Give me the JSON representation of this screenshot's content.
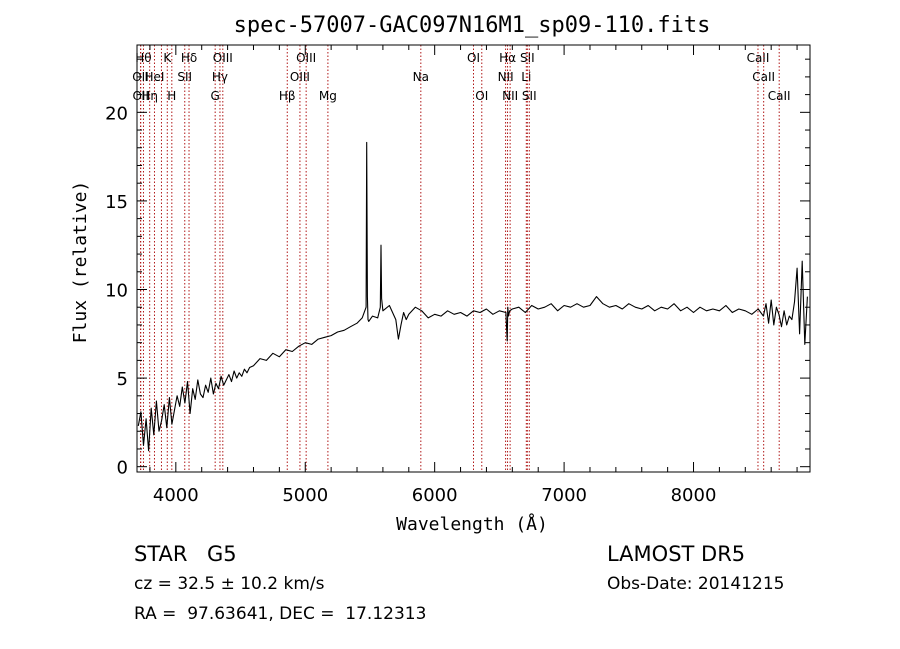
{
  "chart_data": {
    "type": "line",
    "title": "spec-57007-GAC097N16M1_sp09-110.fits",
    "xlabel": "Wavelength (Å)",
    "ylabel": "Flux (relative)",
    "xlim": [
      3700,
      8900
    ],
    "ylim": [
      -0.3,
      23.8
    ],
    "xticks": [
      4000,
      5000,
      6000,
      7000,
      8000
    ],
    "yticks": [
      0,
      5,
      10,
      15,
      20
    ],
    "grid": false,
    "series": [
      {
        "x": [
          3710,
          3730,
          3750,
          3770,
          3790,
          3810,
          3830,
          3850,
          3870,
          3890,
          3910,
          3930,
          3950,
          3970,
          3990,
          4010,
          4030,
          4050,
          4070,
          4090,
          4110,
          4130,
          4150,
          4170,
          4190,
          4210,
          4230,
          4250,
          4270,
          4290,
          4310,
          4330,
          4350,
          4370,
          4390,
          4410,
          4430,
          4450,
          4470,
          4490,
          4510,
          4530,
          4550,
          4570,
          4600,
          4650,
          4700,
          4750,
          4800,
          4850,
          4900,
          4950,
          5000,
          5050,
          5100,
          5150,
          5200,
          5250,
          5300,
          5350,
          5400,
          5440,
          5470,
          5475,
          5480,
          5485,
          5490,
          5520,
          5560,
          5580,
          5585,
          5590,
          5600,
          5650,
          5700,
          5720,
          5740,
          5760,
          5780,
          5800,
          5850,
          5900,
          5950,
          6000,
          6050,
          6100,
          6150,
          6200,
          6250,
          6300,
          6350,
          6400,
          6450,
          6500,
          6550,
          6560,
          6565,
          6570,
          6580,
          6600,
          6650,
          6700,
          6750,
          6800,
          6850,
          6900,
          6950,
          7000,
          7050,
          7100,
          7150,
          7200,
          7250,
          7300,
          7350,
          7400,
          7450,
          7500,
          7550,
          7600,
          7650,
          7700,
          7750,
          7800,
          7850,
          7900,
          7950,
          8000,
          8050,
          8100,
          8150,
          8200,
          8250,
          8300,
          8350,
          8400,
          8450,
          8500,
          8540,
          8560,
          8580,
          8600,
          8620,
          8640,
          8660,
          8680,
          8700,
          8720,
          8740,
          8760,
          8780,
          8800,
          8820,
          8840,
          8860,
          8880
        ],
        "y": [
          2.3,
          3.1,
          1.2,
          2.7,
          0.9,
          3.3,
          1.8,
          3.7,
          2.0,
          2.6,
          3.5,
          2.2,
          3.9,
          2.4,
          3.2,
          4.0,
          3.4,
          4.5,
          3.6,
          4.8,
          3.0,
          4.4,
          3.8,
          4.9,
          4.1,
          3.9,
          4.6,
          4.2,
          5.0,
          4.1,
          4.7,
          4.4,
          5.1,
          4.6,
          4.9,
          5.2,
          4.8,
          5.4,
          5.0,
          5.3,
          5.1,
          5.5,
          5.3,
          5.6,
          5.7,
          6.1,
          6.0,
          6.4,
          6.2,
          6.6,
          6.5,
          6.8,
          7.0,
          6.9,
          7.2,
          7.3,
          7.4,
          7.6,
          7.7,
          7.9,
          8.1,
          8.4,
          9.0,
          18.3,
          9.6,
          8.3,
          8.2,
          8.5,
          8.4,
          9.0,
          12.5,
          9.5,
          8.8,
          9.1,
          8.3,
          7.2,
          8.0,
          8.7,
          8.3,
          8.6,
          9.0,
          8.8,
          8.4,
          8.6,
          8.5,
          8.8,
          8.6,
          8.7,
          8.5,
          8.8,
          8.7,
          8.9,
          8.6,
          8.8,
          8.7,
          7.1,
          9.0,
          8.5,
          8.8,
          8.9,
          9.0,
          8.7,
          9.1,
          8.9,
          9.0,
          9.2,
          8.8,
          9.1,
          9.0,
          9.2,
          9.0,
          9.1,
          9.6,
          9.2,
          9.0,
          9.1,
          8.9,
          9.2,
          9.0,
          8.9,
          9.1,
          8.8,
          9.0,
          8.9,
          9.2,
          8.8,
          9.0,
          8.7,
          9.0,
          8.8,
          8.9,
          8.8,
          9.1,
          8.7,
          8.9,
          8.8,
          8.6,
          8.9,
          8.5,
          9.2,
          8.1,
          9.4,
          8.0,
          9.0,
          8.6,
          7.9,
          8.8,
          8.0,
          8.5,
          8.3,
          9.3,
          11.2,
          7.5,
          11.6,
          6.9,
          9.6
        ]
      }
    ],
    "lines_color": "#b01818",
    "line_markers": [
      {
        "x": 3750,
        "label": "Hθ",
        "row": 0
      },
      {
        "x": 3727,
        "label": "OII",
        "row": 1
      },
      {
        "x": 3729,
        "label": "OII",
        "row": 2
      },
      {
        "x": 3798,
        "label": "Hη",
        "row": 2
      },
      {
        "x": 3835,
        "label": "HeI",
        "row": 1
      },
      {
        "x": 3889,
        "label": "",
        "row": -1
      },
      {
        "x": 3934,
        "label": "K",
        "row": 0
      },
      {
        "x": 3969,
        "label": "H",
        "row": 2
      },
      {
        "x": 4069,
        "label": "SII",
        "row": 1
      },
      {
        "x": 4102,
        "label": "Hδ",
        "row": 0
      },
      {
        "x": 4304,
        "label": "G",
        "row": 2
      },
      {
        "x": 4341,
        "label": "Hγ",
        "row": 1
      },
      {
        "x": 4363,
        "label": "OIII",
        "row": 0
      },
      {
        "x": 4861,
        "label": "Hβ",
        "row": 2
      },
      {
        "x": 4959,
        "label": "OIII",
        "row": 1
      },
      {
        "x": 5007,
        "label": "OIII",
        "row": 0
      },
      {
        "x": 5175,
        "label": "Mg",
        "row": 2
      },
      {
        "x": 5893,
        "label": "Na",
        "row": 1
      },
      {
        "x": 6300,
        "label": "OI",
        "row": 0
      },
      {
        "x": 6364,
        "label": "OI",
        "row": 2
      },
      {
        "x": 6548,
        "label": "NII",
        "row": 1
      },
      {
        "x": 6563,
        "label": "Hα",
        "row": 0
      },
      {
        "x": 6583,
        "label": "NII",
        "row": 2
      },
      {
        "x": 6708,
        "label": "Li",
        "row": 1
      },
      {
        "x": 6716,
        "label": "SII",
        "row": 0
      },
      {
        "x": 6731,
        "label": "SII",
        "row": 2
      },
      {
        "x": 8498,
        "label": "CaII",
        "row": 0
      },
      {
        "x": 8542,
        "label": "CaII",
        "row": 1
      },
      {
        "x": 8662,
        "label": "CaII",
        "row": 2
      }
    ]
  },
  "footer": {
    "class": "STAR",
    "subclass": "G5",
    "survey": "LAMOST DR5",
    "cz": "cz = 32.5 ± 10.2 km/s",
    "obs_date": "Obs-Date: 20141215",
    "coords": "RA =  97.63641, DEC =  17.12313"
  }
}
